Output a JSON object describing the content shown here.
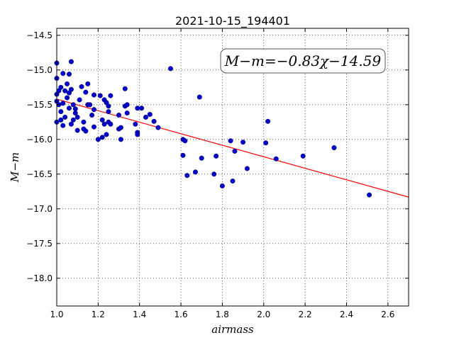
{
  "chart_data": {
    "type": "scatter",
    "title": "2021-10-15_194401",
    "xlabel": "airmass",
    "ylabel": "M−m",
    "xlim": [
      1.0,
      2.7
    ],
    "ylim": [
      -18.4,
      -14.4
    ],
    "y_inverted": true,
    "grid": true,
    "x_ticks": [
      "1.0",
      "1.2",
      "1.4",
      "1.6",
      "1.8",
      "2.0",
      "2.2",
      "2.4",
      "2.6"
    ],
    "y_ticks": [
      "−14.5",
      "−15.0",
      "−15.5",
      "−16.0",
      "−16.5",
      "−17.0",
      "−17.5",
      "−18.0"
    ],
    "annotation": "M−m=−0.83χ−14.59",
    "fit": {
      "slope": -0.83,
      "intercept": -14.59,
      "color": "#ff0000"
    },
    "point_color": "#0000cc",
    "points": [
      [
        1.0,
        -14.9
      ],
      [
        1.0,
        -15.12
      ],
      [
        1.0,
        -15.35
      ],
      [
        1.0,
        -15.45
      ],
      [
        1.0,
        -15.75
      ],
      [
        1.01,
        -15.3
      ],
      [
        1.01,
        -15.5
      ],
      [
        1.02,
        -15.25
      ],
      [
        1.02,
        -15.6
      ],
      [
        1.02,
        -15.72
      ],
      [
        1.03,
        -15.05
      ],
      [
        1.03,
        -15.48
      ],
      [
        1.03,
        -15.8
      ],
      [
        1.04,
        -15.3
      ],
      [
        1.04,
        -15.68
      ],
      [
        1.05,
        -15.2
      ],
      [
        1.05,
        -15.4
      ],
      [
        1.06,
        -15.06
      ],
      [
        1.06,
        -15.33
      ],
      [
        1.06,
        -15.55
      ],
      [
        1.07,
        -15.28
      ],
      [
        1.07,
        -15.78
      ],
      [
        1.07,
        -14.88
      ],
      [
        1.08,
        -15.5
      ],
      [
        1.08,
        -15.72
      ],
      [
        1.09,
        -15.56
      ],
      [
        1.09,
        -15.62
      ],
      [
        1.1,
        -15.68
      ],
      [
        1.1,
        -15.87
      ],
      [
        1.11,
        -15.43
      ],
      [
        1.12,
        -15.24
      ],
      [
        1.13,
        -15.75
      ],
      [
        1.13,
        -15.85
      ],
      [
        1.14,
        -15.32
      ],
      [
        1.14,
        -15.88
      ],
      [
        1.15,
        -15.5
      ],
      [
        1.15,
        -15.2
      ],
      [
        1.16,
        -15.5
      ],
      [
        1.17,
        -15.65
      ],
      [
        1.18,
        -15.36
      ],
      [
        1.18,
        -15.57
      ],
      [
        1.18,
        -15.82
      ],
      [
        1.2,
        -16.0
      ],
      [
        1.21,
        -15.37
      ],
      [
        1.22,
        -15.72
      ],
      [
        1.22,
        -15.97
      ],
      [
        1.23,
        -15.43
      ],
      [
        1.23,
        -15.78
      ],
      [
        1.24,
        -15.47
      ],
      [
        1.24,
        -15.93
      ],
      [
        1.25,
        -15.52
      ],
      [
        1.25,
        -15.6
      ],
      [
        1.25,
        -15.75
      ],
      [
        1.26,
        -15.78
      ],
      [
        1.26,
        -15.37
      ],
      [
        1.3,
        -15.65
      ],
      [
        1.3,
        -15.85
      ],
      [
        1.31,
        -15.83
      ],
      [
        1.31,
        -16.0
      ],
      [
        1.33,
        -15.27
      ],
      [
        1.33,
        -15.52
      ],
      [
        1.34,
        -15.5
      ],
      [
        1.34,
        -15.62
      ],
      [
        1.38,
        -15.78
      ],
      [
        1.39,
        -15.55
      ],
      [
        1.39,
        -15.9
      ],
      [
        1.39,
        -15.93
      ],
      [
        1.41,
        -15.55
      ],
      [
        1.43,
        -15.68
      ],
      [
        1.45,
        -15.64
      ],
      [
        1.47,
        -15.74
      ],
      [
        1.49,
        -15.83
      ],
      [
        1.55,
        -14.98
      ],
      [
        1.61,
        -16.0
      ],
      [
        1.61,
        -16.23
      ],
      [
        1.62,
        -16.02
      ],
      [
        1.63,
        -16.52
      ],
      [
        1.67,
        -16.47
      ],
      [
        1.69,
        -15.39
      ],
      [
        1.7,
        -16.27
      ],
      [
        1.76,
        -16.5
      ],
      [
        1.77,
        -16.24
      ],
      [
        1.8,
        -16.67
      ],
      [
        1.84,
        -16.02
      ],
      [
        1.85,
        -16.6
      ],
      [
        1.86,
        -16.17
      ],
      [
        1.9,
        -16.04
      ],
      [
        1.92,
        -16.42
      ],
      [
        2.01,
        -16.05
      ],
      [
        2.02,
        -15.74
      ],
      [
        2.06,
        -16.28
      ],
      [
        2.19,
        -16.24
      ],
      [
        2.34,
        -16.12
      ],
      [
        2.51,
        -16.8
      ]
    ]
  }
}
